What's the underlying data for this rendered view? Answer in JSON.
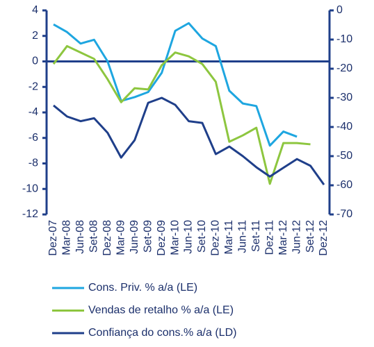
{
  "chart_data": {
    "type": "line",
    "categories": [
      "Dez-07",
      "Mar-08",
      "Jun-08",
      "Set-08",
      "Dez-08",
      "Mar-09",
      "Jun-09",
      "Set-09",
      "Dez-09",
      "Mar-10",
      "Jun-10",
      "Set-10",
      "Dez-10",
      "Mar-11",
      "Jun-11",
      "Set-11",
      "Dez-11",
      "Mar-12",
      "Jun-12",
      "Set-12",
      "Dez-12"
    ],
    "series": [
      {
        "name": "Cons. Priv. % a/a (LE)",
        "color": "#1ea6e0",
        "values": [
          2.9,
          2.3,
          1.4,
          1.7,
          0,
          -3.1,
          -2.8,
          -2.4,
          -0.9,
          2.4,
          3.0,
          1.8,
          1.2,
          -2.3,
          -3.3,
          -3.5,
          -6.6,
          -5.5,
          -5.9,
          null,
          null
        ]
      },
      {
        "name": "Vendas de retalho % a/a (LE)",
        "color": "#8dc63f",
        "values": [
          -0.2,
          1.2,
          0.7,
          0.2,
          -1.4,
          -3.2,
          -2.1,
          -2.2,
          -0.3,
          0.7,
          0.4,
          -0.2,
          -1.6,
          -6.3,
          -5.8,
          -5.2,
          -9.6,
          -6.4,
          -6.4,
          -6.5,
          null
        ]
      },
      {
        "name": "Confiança do cons.% a/a (LD)",
        "color": "#1f3f8a",
        "axis": "y2",
        "values": [
          -32.6,
          -36.4,
          -38,
          -37,
          -42,
          -50.5,
          -44.5,
          -31.7,
          -30,
          -32.4,
          -38,
          -38.6,
          -49.3,
          -46.7,
          -50,
          -53.8,
          -57,
          -54,
          -51,
          -53.3,
          -59.8
        ]
      }
    ],
    "ylim": [
      -12,
      4
    ],
    "yticks": [
      4,
      2,
      0,
      -2,
      -4,
      -6,
      -8,
      -10,
      -12
    ],
    "y2lim": [
      -70,
      0
    ],
    "y2ticks": [
      0,
      -10,
      -20,
      -30,
      -40,
      -50,
      -60,
      -70
    ],
    "legend": "bottom"
  }
}
